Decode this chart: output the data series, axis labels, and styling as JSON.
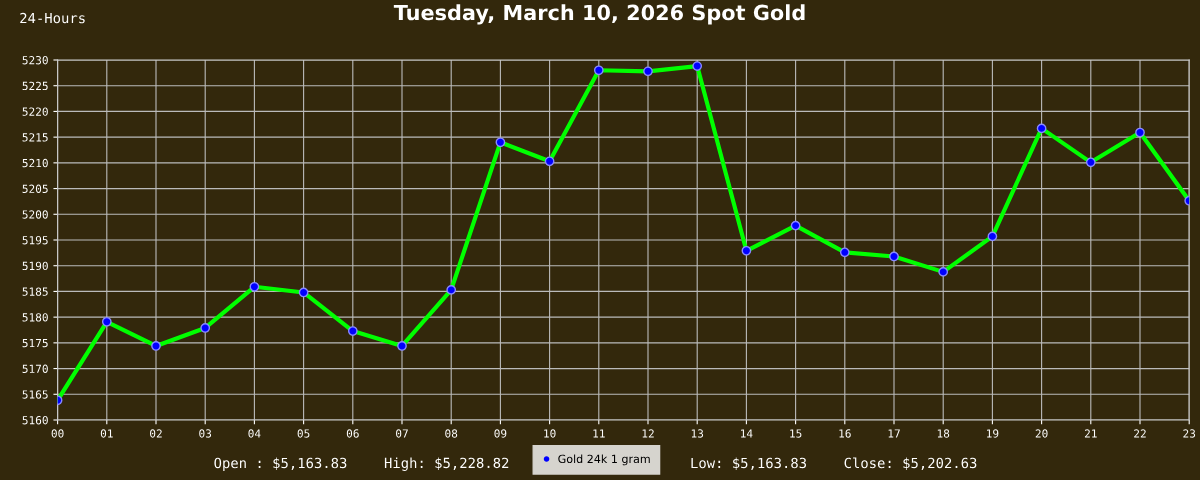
{
  "chart_data": {
    "type": "line",
    "title": "Tuesday, March 10, 2026 Spot Gold",
    "categories": [
      "00",
      "01",
      "02",
      "03",
      "04",
      "05",
      "06",
      "07",
      "08",
      "09",
      "10",
      "11",
      "12",
      "13",
      "14",
      "15",
      "16",
      "17",
      "18",
      "19",
      "20",
      "21",
      "22",
      "23"
    ],
    "series": [
      {
        "name": "Gold 24k 1 gram",
        "color": "#00ff00",
        "values": [
          5163.83,
          5179.1,
          5174.4,
          5177.9,
          5185.9,
          5184.8,
          5177.3,
          5174.4,
          5185.3,
          5214.0,
          5210.3,
          5228.0,
          5227.8,
          5228.82,
          5192.9,
          5197.8,
          5192.6,
          5191.8,
          5188.8,
          5195.7,
          5216.7,
          5210.1,
          5215.9,
          5202.63
        ]
      }
    ],
    "ylim": [
      5160,
      5230
    ],
    "yticks": [
      5160,
      5165,
      5170,
      5175,
      5180,
      5185,
      5190,
      5195,
      5200,
      5205,
      5210,
      5215,
      5220,
      5225,
      5230
    ],
    "grid": true,
    "legend": "bottom",
    "marker": "circle",
    "line_style": "solid",
    "annotations": [
      "24-Hours",
      "Open : $5,163.83",
      "High: $5,228.82",
      "Low: $5,163.83",
      "Close: $5,202.63"
    ]
  }
}
